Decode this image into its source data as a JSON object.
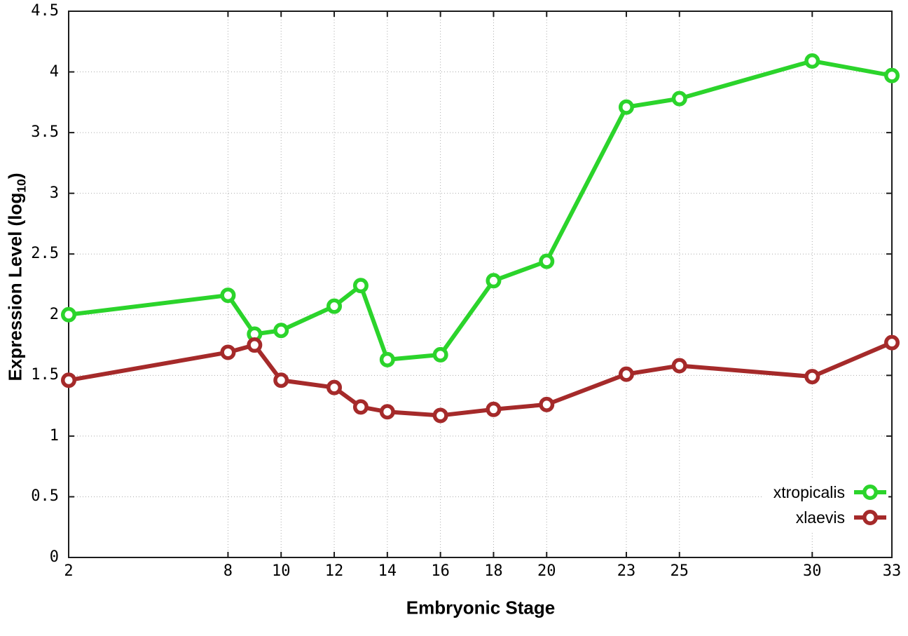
{
  "axes": {
    "y_label_prefix": "Expression Level (log",
    "y_label_sub": "10",
    "y_label_suffix": ")"
  },
  "chart_data": {
    "type": "line",
    "title": "",
    "xlabel": "Embryonic Stage",
    "ylabel": "Expression Level (log10)",
    "xlim": [
      2,
      33
    ],
    "ylim": [
      0,
      4.5
    ],
    "grid": true,
    "grid_style": "dotted",
    "legend_position": "bottom-right-inside",
    "x_ticks": [
      2,
      8,
      10,
      12,
      14,
      16,
      18,
      20,
      23,
      25,
      30,
      33
    ],
    "y_ticks": [
      0,
      0.5,
      1,
      1.5,
      2,
      2.5,
      3,
      3.5,
      4,
      4.5
    ],
    "x": [
      2,
      8,
      9,
      10,
      12,
      13,
      14,
      16,
      18,
      20,
      23,
      25,
      30,
      33
    ],
    "series": [
      {
        "name": "xtropicalis",
        "color": "#2bd42b",
        "marker": "open-circle",
        "values": [
          2.0,
          2.16,
          1.84,
          1.87,
          2.07,
          2.24,
          1.63,
          1.67,
          2.28,
          2.44,
          3.71,
          3.78,
          4.09,
          3.97
        ]
      },
      {
        "name": "xlaevis",
        "color": "#a52a2a",
        "marker": "open-circle",
        "values": [
          1.46,
          1.69,
          1.75,
          1.46,
          1.4,
          1.24,
          1.2,
          1.17,
          1.22,
          1.26,
          1.51,
          1.58,
          1.49,
          1.77
        ]
      }
    ]
  }
}
